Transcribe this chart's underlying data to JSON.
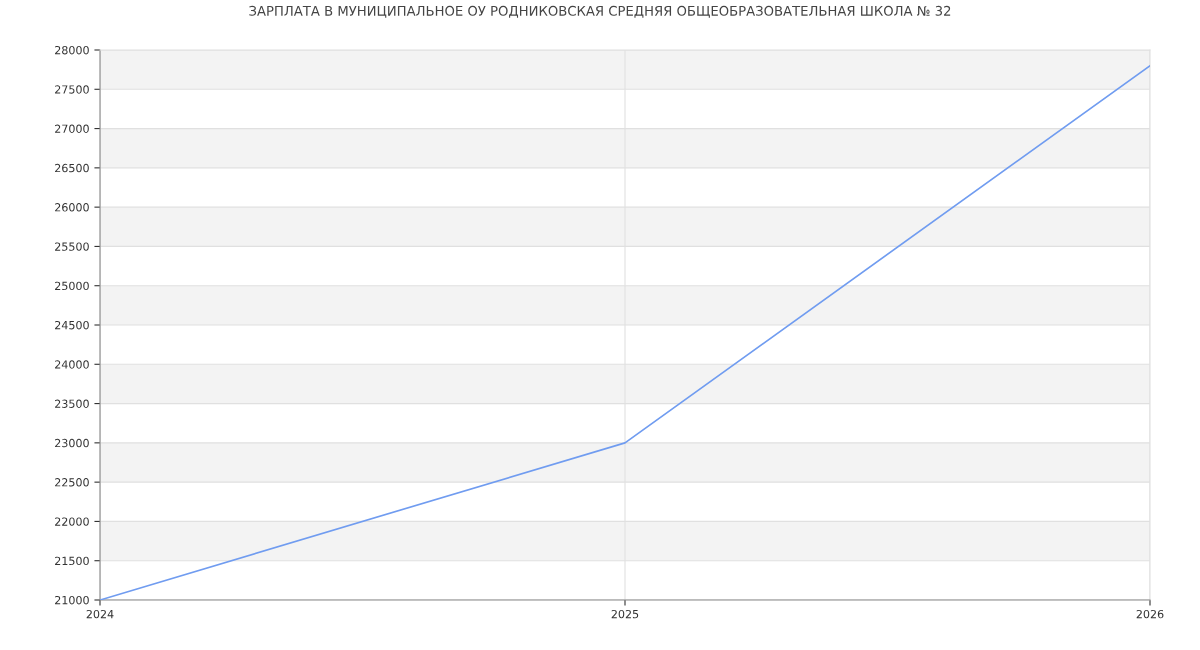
{
  "chart_data": {
    "type": "line",
    "title": "ЗАРПЛАТА В МУНИЦИПАЛЬНОЕ ОУ РОДНИКОВСКАЯ СРЕДНЯЯ ОБЩЕОБРАЗОВАТЕЛЬНАЯ ШКОЛА № 32",
    "x": [
      2024,
      2025,
      2026
    ],
    "series": [
      {
        "color": "#709cf0",
        "values": [
          21000,
          23000,
          27800
        ]
      }
    ],
    "xlim": [
      2024,
      2026
    ],
    "xticks": [
      2024,
      2025,
      2026
    ],
    "ylim": [
      21000,
      28000
    ],
    "yticks": [
      21000,
      21500,
      22000,
      22500,
      23000,
      23500,
      24000,
      24500,
      25000,
      25500,
      26000,
      26500,
      27000,
      27500,
      28000
    ],
    "grid": true,
    "legend": false,
    "marker": "none",
    "line_style": "solid"
  }
}
